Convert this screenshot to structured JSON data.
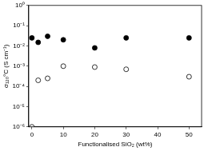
{
  "chart_data": {
    "type": "scatter",
    "x_label": "Functionalised SiO₂ (wt%)",
    "y_label": "σ₁₂₀°C (S cm⁻¹)",
    "x": [
      0,
      2,
      5,
      10,
      20,
      30,
      50
    ],
    "series": [
      {
        "color": "#000000",
        "marker": "circle",
        "values": [
          0.025,
          0.015,
          0.03,
          0.02,
          0.008,
          0.025,
          0.025
        ]
      },
      {
        "color": "#000000",
        "marker": "open_circle",
        "values": [
          1e-06,
          0.0002,
          0.00025,
          0.001,
          0.0009,
          0.0007,
          0.0003
        ]
      }
    ],
    "xlim": [
      -1,
      54
    ],
    "xticks": [
      0,
      10,
      20,
      30,
      40,
      50
    ],
    "ylim": [
      1e-06,
      1
    ],
    "yticks": [
      {
        "value": 1e-06,
        "label": "10⁻⁶"
      },
      {
        "value": 1e-05,
        "label": "10⁻⁵"
      },
      {
        "value": 0.0001,
        "label": "10⁻⁴"
      },
      {
        "value": 0.001,
        "label": "10⁻³"
      },
      {
        "value": 0.01,
        "label": "10⁻²"
      },
      {
        "value": 0.1,
        "label": "10⁻¹"
      },
      {
        "value": 1,
        "label": "10⁰"
      }
    ],
    "log": "y",
    "grid": false
  }
}
